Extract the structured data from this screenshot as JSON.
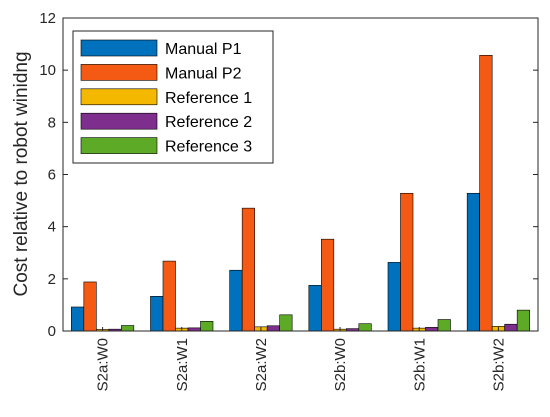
{
  "chart_data": {
    "type": "bar",
    "title": "",
    "xlabel": "",
    "ylabel": "Cost relative to robot winidng",
    "ylim": [
      0,
      12
    ],
    "yticks": [
      0,
      2,
      4,
      6,
      8,
      10,
      12
    ],
    "grid": false,
    "legend_position": "top-left",
    "categories": [
      "S2a:W0",
      "S2a:W1",
      "S2a:W2",
      "S2b:W0",
      "S2b:W1",
      "S2b:W2"
    ],
    "series": [
      {
        "name": "Manual P1",
        "color": "#0072BD",
        "values": [
          0.92,
          1.33,
          2.33,
          1.75,
          2.63,
          5.28
        ]
      },
      {
        "name": "Manual P2",
        "color": "#F55A14",
        "values": [
          1.88,
          2.68,
          4.71,
          3.52,
          5.28,
          10.57
        ]
      },
      {
        "name": "Reference 1",
        "color": "#F5B800",
        "values": [
          0.06,
          0.11,
          0.16,
          0.07,
          0.11,
          0.18
        ]
      },
      {
        "name": "Reference 2",
        "color": "#7E2F8E",
        "values": [
          0.07,
          0.12,
          0.2,
          0.09,
          0.14,
          0.26
        ]
      },
      {
        "name": "Reference 3",
        "color": "#5DAA26",
        "values": [
          0.21,
          0.37,
          0.62,
          0.28,
          0.44,
          0.8
        ]
      }
    ]
  }
}
